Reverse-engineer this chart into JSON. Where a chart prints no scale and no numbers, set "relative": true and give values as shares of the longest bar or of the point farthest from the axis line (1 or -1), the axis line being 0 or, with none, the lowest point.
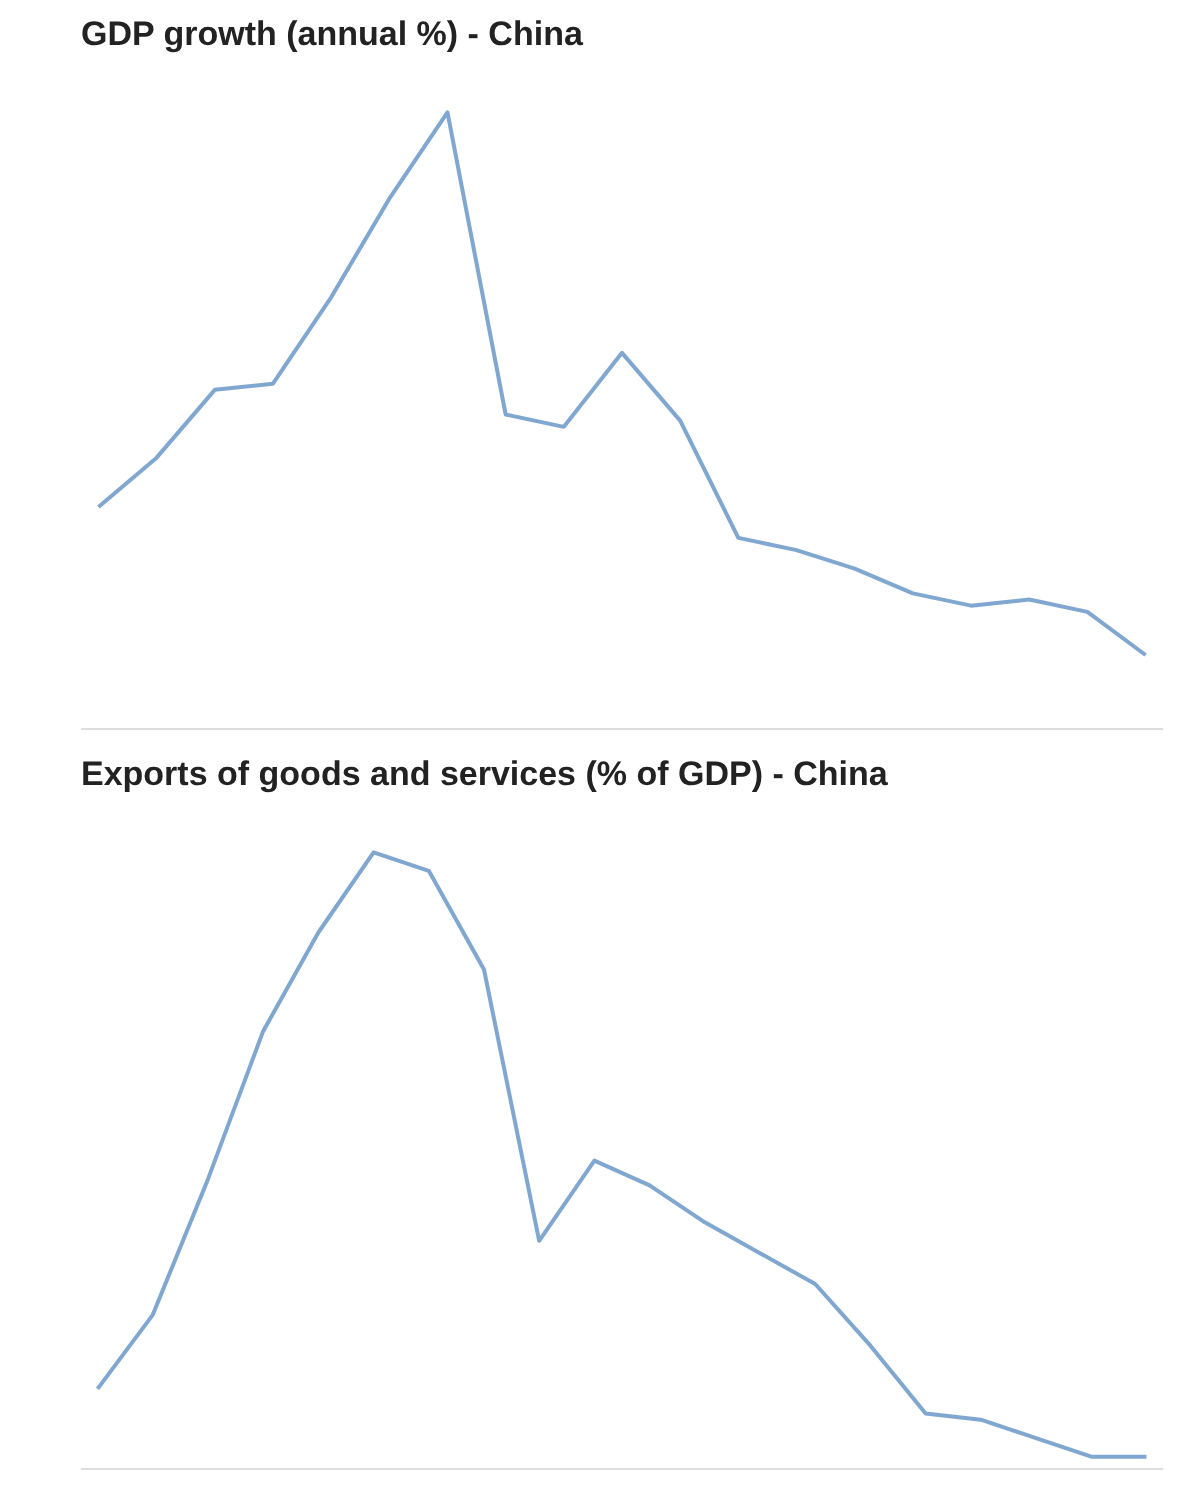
{
  "chart_data": [
    {
      "type": "line",
      "title": "GDP growth (annual %) - China",
      "relative": true,
      "categories": [
        null,
        null,
        null,
        null,
        null,
        null,
        null,
        null,
        null,
        null,
        null,
        null,
        null,
        null,
        null,
        null,
        null,
        null,
        null
      ],
      "series": [
        {
          "color": "#7fa7cf",
          "values": [
            0.36,
            0.44,
            0.55,
            0.56,
            0.7,
            0.86,
            1.0,
            0.51,
            0.49,
            0.61,
            0.5,
            0.31,
            0.29,
            0.26,
            0.22,
            0.2,
            0.21,
            0.19,
            0.12
          ]
        }
      ]
    },
    {
      "type": "line",
      "title": "Exports of goods and services (% of GDP) - China",
      "relative": true,
      "categories": [
        null,
        null,
        null,
        null,
        null,
        null,
        null,
        null,
        null,
        null,
        null,
        null,
        null,
        null,
        null,
        null,
        null,
        null,
        null,
        null
      ],
      "series": [
        {
          "color": "#7fa7cf",
          "values": [
            0.13,
            0.25,
            0.47,
            0.71,
            0.87,
            1.0,
            0.97,
            0.81,
            0.37,
            0.5,
            0.46,
            0.4,
            0.35,
            0.3,
            0.2,
            0.09,
            0.08,
            0.05,
            0.02,
            0.02
          ]
        }
      ]
    }
  ]
}
